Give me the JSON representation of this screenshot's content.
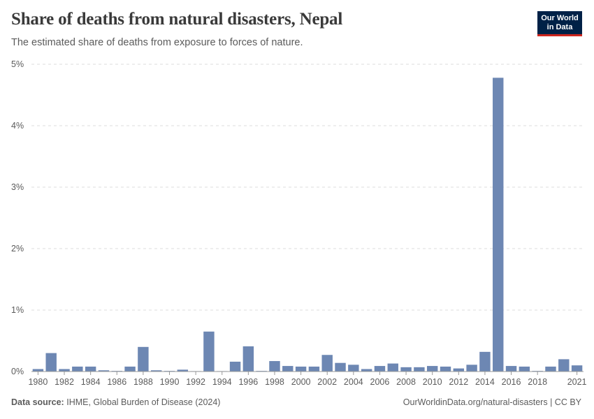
{
  "header": {
    "title": "Share of deaths from natural disasters, Nepal",
    "subtitle": "The estimated share of deaths from exposure to forces of nature."
  },
  "logo": {
    "line1": "Our World",
    "line2": "in Data"
  },
  "footer": {
    "source_label": "Data source:",
    "source_text": "IHME, Global Burden of Disease (2024)",
    "url_text": "OurWorldinData.org/natural-disasters | CC BY"
  },
  "colors": {
    "bar": "#6d87b3",
    "grid": "#dddddd",
    "axis": "#999999"
  },
  "chart_data": {
    "type": "bar",
    "title": "Share of deaths from natural disasters, Nepal",
    "xlabel": "",
    "ylabel": "",
    "y_unit": "%",
    "ylim": [
      0,
      5
    ],
    "y_ticks": [
      0,
      1,
      2,
      3,
      4,
      5
    ],
    "y_tick_labels": [
      "0%",
      "1%",
      "2%",
      "3%",
      "4%",
      "5%"
    ],
    "x_tick_labels": [
      "1980",
      "1982",
      "1984",
      "1986",
      "1988",
      "1990",
      "1992",
      "1994",
      "1996",
      "1998",
      "2000",
      "2002",
      "2004",
      "2006",
      "2008",
      "2010",
      "2012",
      "2014",
      "2016",
      "2018",
      "2021"
    ],
    "categories": [
      "1980",
      "1981",
      "1982",
      "1983",
      "1984",
      "1985",
      "1986",
      "1987",
      "1988",
      "1989",
      "1990",
      "1991",
      "1992",
      "1993",
      "1994",
      "1995",
      "1996",
      "1997",
      "1998",
      "1999",
      "2000",
      "2001",
      "2002",
      "2003",
      "2004",
      "2005",
      "2006",
      "2007",
      "2008",
      "2009",
      "2010",
      "2011",
      "2012",
      "2013",
      "2014",
      "2015",
      "2016",
      "2017",
      "2018",
      "2019",
      "2020",
      "2021"
    ],
    "values": [
      0.04,
      0.3,
      0.04,
      0.08,
      0.08,
      0.02,
      0.01,
      0.08,
      0.4,
      0.02,
      0.01,
      0.03,
      0.003,
      0.65,
      0.003,
      0.16,
      0.41,
      0.01,
      0.17,
      0.09,
      0.08,
      0.08,
      0.27,
      0.14,
      0.11,
      0.04,
      0.09,
      0.13,
      0.07,
      0.07,
      0.09,
      0.08,
      0.05,
      0.11,
      0.32,
      4.78,
      0.09,
      0.08,
      0.01,
      0.08,
      0.2,
      0.1
    ],
    "grid": true,
    "legend": "none"
  }
}
